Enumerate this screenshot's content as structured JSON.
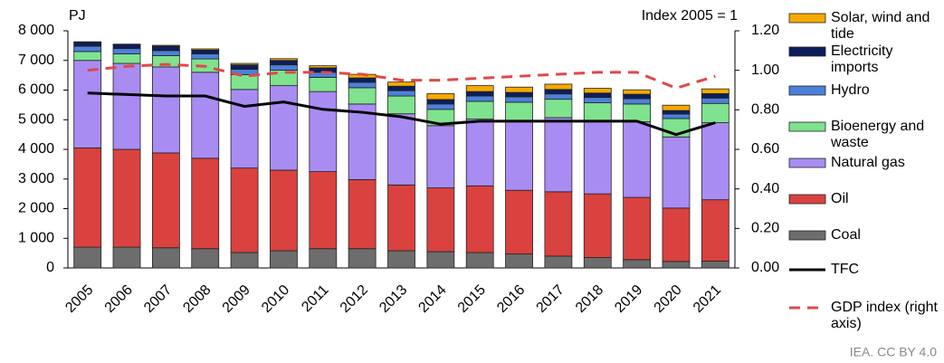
{
  "chart_data": {
    "type": "bar",
    "y_label": "PJ",
    "y2_label": "Index 2005 = 1",
    "source": "IEA. CC BY 4.0",
    "categories": [
      "2005",
      "2006",
      "2007",
      "2008",
      "2009",
      "2010",
      "2011",
      "2012",
      "2013",
      "2014",
      "2015",
      "2016",
      "2017",
      "2018",
      "2019",
      "2020",
      "2021"
    ],
    "series": [
      {
        "name": "Coal",
        "color": "#6d6d6d",
        "values": [
          700,
          700,
          680,
          650,
          520,
          580,
          650,
          650,
          580,
          550,
          520,
          470,
          400,
          350,
          280,
          220,
          230
        ]
      },
      {
        "name": "Oil",
        "color": "#d9423f",
        "values": [
          3350,
          3300,
          3200,
          3050,
          2850,
          2720,
          2600,
          2330,
          2220,
          2150,
          2250,
          2150,
          2170,
          2150,
          2100,
          1800,
          2070
        ]
      },
      {
        "name": "Natural gas",
        "color": "#a98cf2",
        "values": [
          2950,
          2900,
          2900,
          2900,
          2650,
          2850,
          2700,
          2550,
          2400,
          2100,
          2250,
          2350,
          2500,
          2450,
          2550,
          2400,
          2600
        ]
      },
      {
        "name": "Bioenergy and waste",
        "color": "#7fe28e",
        "values": [
          300,
          320,
          380,
          450,
          500,
          520,
          480,
          550,
          600,
          550,
          600,
          620,
          620,
          620,
          600,
          620,
          650
        ]
      },
      {
        "name": "Hydro",
        "color": "#4d80d8",
        "values": [
          180,
          180,
          170,
          170,
          180,
          180,
          170,
          180,
          180,
          180,
          180,
          180,
          180,
          180,
          180,
          150,
          180
        ]
      },
      {
        "name": "Electricity imports",
        "color": "#0d1e5c",
        "values": [
          130,
          130,
          150,
          130,
          150,
          150,
          150,
          150,
          150,
          150,
          150,
          150,
          150,
          150,
          150,
          120,
          150
        ]
      },
      {
        "name": "Solar, wind and tide",
        "color": "#f5aa00",
        "values": [
          20,
          20,
          30,
          40,
          50,
          60,
          70,
          120,
          140,
          200,
          200,
          180,
          180,
          160,
          150,
          180,
          160
        ]
      },
      {
        "name": "TFC",
        "type": "line",
        "color": "#000000",
        "values": [
          5900,
          5850,
          5800,
          5800,
          5450,
          5600,
          5350,
          5250,
          5100,
          4850,
          4950,
          4950,
          4950,
          4950,
          4950,
          4500,
          4900
        ]
      },
      {
        "name": "GDP index (right axis)",
        "type": "line",
        "dashed": true,
        "axis": "y2",
        "color": "#e04848",
        "values": [
          1.0,
          1.02,
          1.03,
          1.02,
          0.97,
          0.99,
          0.99,
          0.98,
          0.95,
          0.95,
          0.96,
          0.97,
          0.98,
          0.99,
          0.99,
          0.91,
          0.97
        ]
      }
    ],
    "stacked": true,
    "ylim": [
      0,
      8000
    ],
    "yticks": [
      0,
      {
        "value": 1000,
        "label": "1 000"
      },
      {
        "value": 2000,
        "label": "2 000"
      },
      {
        "value": 3000,
        "label": "3 000"
      },
      {
        "value": 4000,
        "label": "4 000"
      },
      {
        "value": 5000,
        "label": "5 000"
      },
      {
        "value": 6000,
        "label": "6 000"
      },
      {
        "value": 7000,
        "label": "7 000"
      },
      {
        "value": 8000,
        "label": "8 000"
      }
    ],
    "y2lim": [
      0,
      1.2
    ],
    "y2ticks": [
      {
        "value": 0,
        "label": "0.00"
      },
      {
        "value": 0.2,
        "label": "0.20"
      },
      {
        "value": 0.4,
        "label": "0.40"
      },
      {
        "value": 0.6,
        "label": "0.60"
      },
      {
        "value": 0.8,
        "label": "0.80"
      },
      {
        "value": 1.0,
        "label": "1.00"
      },
      {
        "value": 1.2,
        "label": "1.20"
      }
    ],
    "grid": false,
    "legend": "right"
  }
}
